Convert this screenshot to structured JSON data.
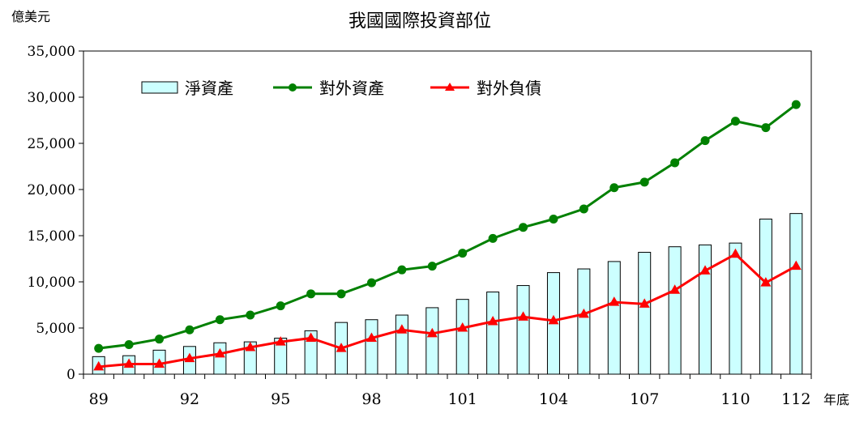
{
  "chart_data": {
    "type": "bar+line",
    "title": "我國國際投資部位",
    "ylabel": "億美元",
    "xlabel": "年底",
    "ylim": [
      0,
      35000
    ],
    "yticks": [
      0,
      5000,
      10000,
      15000,
      20000,
      25000,
      30000,
      35000
    ],
    "ytick_labels": [
      "0",
      "5,000",
      "10,000",
      "15,000",
      "20,000",
      "25,000",
      "30,000",
      "35,000"
    ],
    "categories": [
      89,
      90,
      91,
      92,
      93,
      94,
      95,
      96,
      97,
      98,
      99,
      100,
      101,
      102,
      103,
      104,
      105,
      106,
      107,
      108,
      109,
      110,
      111,
      112
    ],
    "xtick_labels": [
      {
        "category": 89,
        "label": "89"
      },
      {
        "category": 92,
        "label": "92"
      },
      {
        "category": 95,
        "label": "95"
      },
      {
        "category": 98,
        "label": "98"
      },
      {
        "category": 101,
        "label": "101"
      },
      {
        "category": 104,
        "label": "104"
      },
      {
        "category": 107,
        "label": "107"
      },
      {
        "category": 110,
        "label": "110"
      },
      {
        "category": 112,
        "label": "112"
      }
    ],
    "series": [
      {
        "name": "淨資產",
        "kind": "bar",
        "color": "#ccffff",
        "edge": "#000000",
        "values": [
          1900,
          2000,
          2600,
          3000,
          3400,
          3500,
          3900,
          4700,
          5600,
          5900,
          6400,
          7200,
          8100,
          8900,
          9600,
          11000,
          11400,
          12200,
          13200,
          13800,
          14000,
          14200,
          16800,
          17400
        ]
      },
      {
        "name": "對外資產",
        "kind": "line",
        "marker": "circle",
        "color": "#008000",
        "values": [
          2800,
          3200,
          3800,
          4800,
          5900,
          6400,
          7400,
          8700,
          8700,
          9900,
          11300,
          11700,
          13100,
          14700,
          15900,
          16800,
          17900,
          20200,
          20800,
          22900,
          25300,
          27400,
          26700,
          29200
        ]
      },
      {
        "name": "對外負債",
        "kind": "line",
        "marker": "triangle",
        "color": "#ff0000",
        "values": [
          800,
          1100,
          1100,
          1700,
          2200,
          2900,
          3500,
          3900,
          2800,
          3900,
          4800,
          4400,
          5000,
          5700,
          6200,
          5800,
          6500,
          7800,
          7600,
          9100,
          11200,
          13000,
          9900,
          11700
        ]
      }
    ],
    "legend_position": "top-left"
  }
}
